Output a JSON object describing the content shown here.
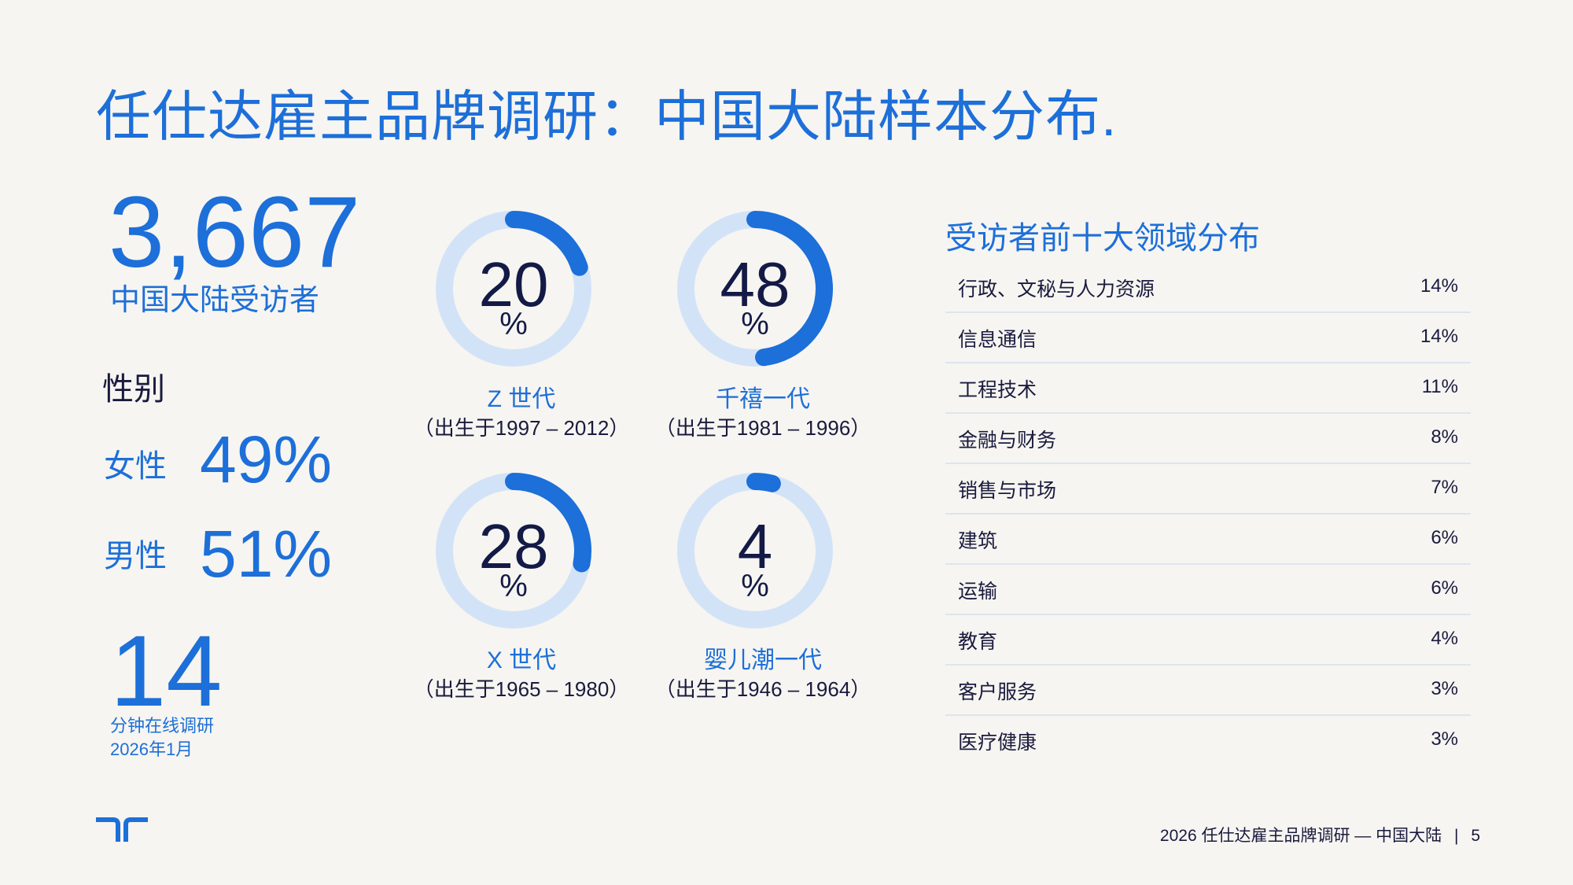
{
  "title": "任仕达雇主品牌调研：中国大陆样本分布.",
  "total": {
    "value": "3,667",
    "label": "中国大陆受访者"
  },
  "gender": {
    "heading": "性别",
    "items": [
      {
        "label": "女性",
        "value": "49%"
      },
      {
        "label": "男性",
        "value": "51%"
      }
    ]
  },
  "survey": {
    "minutes": "14",
    "label_line1": "分钟在线调研",
    "label_line2": "2026年1月"
  },
  "generations": [
    {
      "value": "20",
      "percent": 20,
      "unit": "%",
      "name": "Z 世代",
      "range": "（出生于1997 – 2012）"
    },
    {
      "value": "48",
      "percent": 48,
      "unit": "%",
      "name": "千禧一代",
      "range": "（出生于1981 – 1996）"
    },
    {
      "value": "28",
      "percent": 28,
      "unit": "%",
      "name": "X 世代",
      "range": "（出生于1965 – 1980）"
    },
    {
      "value": "4",
      "percent": 4,
      "unit": "%",
      "name": "婴儿潮一代",
      "range": "（出生于1946 – 1964）"
    }
  ],
  "fields": {
    "title": "受访者前十大领域分布",
    "rows": [
      {
        "label": "行政、文秘与人力资源",
        "value": "14%"
      },
      {
        "label": "信息通信",
        "value": "14%"
      },
      {
        "label": "工程技术",
        "value": "11%"
      },
      {
        "label": "金融与财务",
        "value": "8%"
      },
      {
        "label": "销售与市场",
        "value": "7%"
      },
      {
        "label": "建筑",
        "value": "6%"
      },
      {
        "label": "运输",
        "value": "6%"
      },
      {
        "label": "教育",
        "value": "4%"
      },
      {
        "label": "客户服务",
        "value": "3%"
      },
      {
        "label": "医疗健康",
        "value": "3%"
      }
    ]
  },
  "footer": {
    "text": "2026 任仕达雇主品牌调研 — 中国大陆",
    "page": "5"
  },
  "colors": {
    "accent": "#1d6fd9",
    "ring_track": "#d3e3f7",
    "dark": "#141a46"
  },
  "logo_icon": "randstad-logo-icon"
}
